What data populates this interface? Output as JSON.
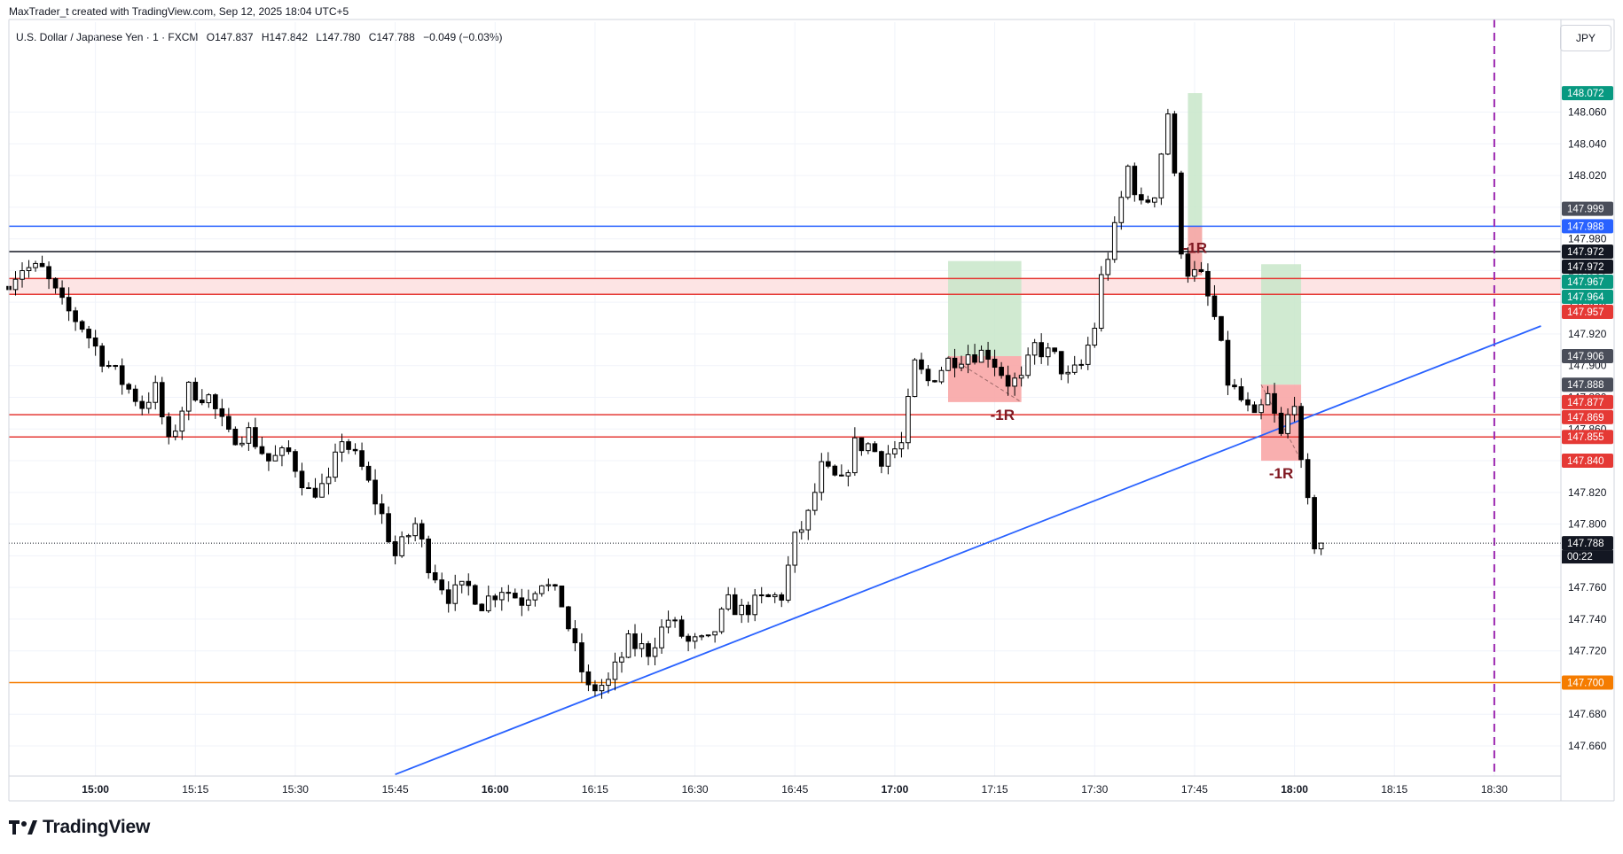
{
  "header": {
    "credit": "MaxTrader_t created with TradingView.com, Sep 12, 2025 18:04 UTC+5"
  },
  "legend": {
    "symbol": "U.S. Dollar / Japanese Yen · 1 · FXCM",
    "open_label": "O",
    "open": "147.837",
    "high_label": "H",
    "high": "147.842",
    "low_label": "L",
    "low": "147.780",
    "close_label": "C",
    "close": "147.788",
    "change": "−0.049 (−0.03%)"
  },
  "currency": "JPY",
  "brand": {
    "name": "TradingView",
    "logo_icon": "tradingview-logo-icon"
  },
  "colors": {
    "up_body": "#ffffff",
    "down_body": "#000000",
    "wick": "#000000",
    "blue_line": "#2962ff",
    "red_line": "#e53935",
    "orange_line": "#f57c00",
    "purple_vline": "#9c27b0",
    "profit_zone": "#c8e6c9",
    "loss_zone": "#f8a6a6",
    "r_label": "#801922"
  },
  "chart_data": {
    "type": "candlestick",
    "symbol": "USDJPY",
    "timeframe": "1",
    "xlim": [
      "14:47",
      "18:40"
    ],
    "ylim": [
      147.641,
      148.1
    ],
    "x_ticks": [
      "15:00",
      "15:15",
      "15:30",
      "15:45",
      "16:00",
      "16:15",
      "16:30",
      "16:45",
      "17:00",
      "17:15",
      "17:30",
      "17:45",
      "18:00",
      "18:15",
      "18:30"
    ],
    "bold_x_ticks": [
      "15:00",
      "16:00",
      "17:00",
      "18:00"
    ],
    "y_ticks": [
      147.66,
      147.68,
      147.7,
      147.72,
      147.74,
      147.76,
      147.78,
      147.8,
      147.82,
      147.84,
      147.86,
      147.88,
      147.9,
      147.92,
      147.94,
      147.96,
      147.98,
      148.0,
      148.02,
      148.04,
      148.06
    ],
    "anchors": [
      [
        "14:47",
        147.95
      ],
      [
        "14:50",
        147.962
      ],
      [
        "14:53",
        147.96
      ],
      [
        "14:56",
        147.938
      ],
      [
        "14:59",
        147.925
      ],
      [
        "15:02",
        147.905
      ],
      [
        "15:05",
        147.89
      ],
      [
        "15:08",
        147.875
      ],
      [
        "15:10",
        147.885
      ],
      [
        "15:12",
        147.85
      ],
      [
        "15:15",
        147.885
      ],
      [
        "15:18",
        147.88
      ],
      [
        "15:21",
        147.855
      ],
      [
        "15:24",
        147.858
      ],
      [
        "15:27",
        147.84
      ],
      [
        "15:30",
        147.845
      ],
      [
        "15:33",
        147.82
      ],
      [
        "15:36",
        147.825
      ],
      [
        "15:38",
        147.855
      ],
      [
        "15:41",
        147.835
      ],
      [
        "15:44",
        147.805
      ],
      [
        "15:46",
        147.78
      ],
      [
        "15:49",
        147.8
      ],
      [
        "15:51",
        147.775
      ],
      [
        "15:54",
        147.755
      ],
      [
        "15:57",
        147.76
      ],
      [
        "15:59",
        147.75
      ],
      [
        "16:02",
        147.76
      ],
      [
        "16:05",
        147.752
      ],
      [
        "16:08",
        147.765
      ],
      [
        "16:11",
        147.75
      ],
      [
        "16:13",
        147.72
      ],
      [
        "16:15",
        147.695
      ],
      [
        "16:18",
        147.7
      ],
      [
        "16:21",
        147.725
      ],
      [
        "16:24",
        147.72
      ],
      [
        "16:27",
        147.74
      ],
      [
        "16:30",
        147.725
      ],
      [
        "16:33",
        147.725
      ],
      [
        "16:36",
        147.75
      ],
      [
        "16:38",
        147.745
      ],
      [
        "16:41",
        147.752
      ],
      [
        "16:44",
        147.755
      ],
      [
        "16:46",
        147.79
      ],
      [
        "16:48",
        147.805
      ],
      [
        "16:50",
        147.835
      ],
      [
        "16:53",
        147.825
      ],
      [
        "16:55",
        147.85
      ],
      [
        "16:57",
        147.85
      ],
      [
        "16:59",
        147.842
      ],
      [
        "17:02",
        147.85
      ],
      [
        "17:04",
        147.9
      ],
      [
        "17:06",
        147.89
      ],
      [
        "17:09",
        147.903
      ],
      [
        "17:12",
        147.908
      ],
      [
        "17:15",
        147.908
      ],
      [
        "17:18",
        147.89
      ],
      [
        "17:20",
        147.89
      ],
      [
        "17:22",
        147.912
      ],
      [
        "17:25",
        147.905
      ],
      [
        "17:27",
        147.892
      ],
      [
        "17:29",
        147.9
      ],
      [
        "17:31",
        147.925
      ],
      [
        "17:32",
        147.955
      ],
      [
        "17:34",
        147.985
      ],
      [
        "17:36",
        148.025
      ],
      [
        "17:38",
        148.0
      ],
      [
        "17:40",
        148.01
      ],
      [
        "17:42",
        148.06
      ],
      [
        "17:44",
        147.975
      ],
      [
        "17:45",
        147.96
      ],
      [
        "17:47",
        147.955
      ],
      [
        "17:49",
        147.93
      ],
      [
        "17:51",
        147.89
      ],
      [
        "17:53",
        147.878
      ],
      [
        "17:55",
        147.865
      ],
      [
        "17:57",
        147.88
      ],
      [
        "17:59",
        147.855
      ],
      [
        "18:01",
        147.88
      ],
      [
        "18:02",
        147.835
      ],
      [
        "18:04",
        147.788
      ]
    ],
    "last_price": 147.788,
    "countdown": "00:22",
    "horizontal_lines": [
      {
        "price": 147.988,
        "color": "#2962ff"
      },
      {
        "price": 147.972,
        "color": "#131722"
      },
      {
        "price": 147.955,
        "color": "#e53935"
      },
      {
        "price": 147.945,
        "color": "#e53935"
      },
      {
        "price": 147.869,
        "color": "#e53935"
      },
      {
        "price": 147.855,
        "color": "#e53935"
      },
      {
        "price": 147.7,
        "color": "#f57c00"
      }
    ],
    "red_band": [
      147.945,
      147.955
    ],
    "trendline": {
      "start": [
        "15:45",
        147.642
      ],
      "end": [
        "18:37",
        147.925
      ],
      "color": "#2962ff"
    },
    "vertical_line": {
      "time": "18:30",
      "color": "#9c27b0"
    },
    "positions": [
      {
        "x_start": "17:08",
        "x_end": "17:19",
        "entry": 147.906,
        "stop": 147.877,
        "target": 147.966,
        "label": "-1R"
      },
      {
        "x_start": "17:44",
        "x_end": "17:46",
        "entry": 147.957,
        "stop": 147.988,
        "target": 148.072,
        "label": "-1R",
        "side": "short"
      },
      {
        "x_start": "17:55",
        "x_end": "18:01",
        "entry": 147.888,
        "stop": 147.84,
        "target": 147.964,
        "label": "-1R"
      }
    ],
    "price_badges": [
      {
        "price": 148.072,
        "label": "148.072",
        "color": "#089981"
      },
      {
        "price": 147.999,
        "label": "147.999",
        "color": "#4a4e5a"
      },
      {
        "price": 147.988,
        "label": "147.988",
        "color": "#2962ff"
      },
      {
        "price": 147.972,
        "label": "147.972",
        "color": "#131722"
      },
      {
        "price": 147.972,
        "label": "147.972",
        "color": "#131722"
      },
      {
        "price": 147.967,
        "label": "147.967",
        "color": "#089981"
      },
      {
        "price": 147.964,
        "label": "147.964",
        "color": "#089981"
      },
      {
        "price": 147.957,
        "label": "147.957",
        "color": "#e53935"
      },
      {
        "price": 147.906,
        "label": "147.906",
        "color": "#4a4e5a"
      },
      {
        "price": 147.888,
        "label": "147.888",
        "color": "#4a4e5a"
      },
      {
        "price": 147.877,
        "label": "147.877",
        "color": "#e53935"
      },
      {
        "price": 147.869,
        "label": "147.869",
        "color": "#e53935"
      },
      {
        "price": 147.855,
        "label": "147.855",
        "color": "#e53935"
      },
      {
        "price": 147.84,
        "label": "147.840",
        "color": "#e53935"
      },
      {
        "price": 147.788,
        "label": "147.788",
        "color": "#131722"
      },
      {
        "price": 147.7,
        "label": "147.700",
        "color": "#f57c00"
      }
    ]
  }
}
